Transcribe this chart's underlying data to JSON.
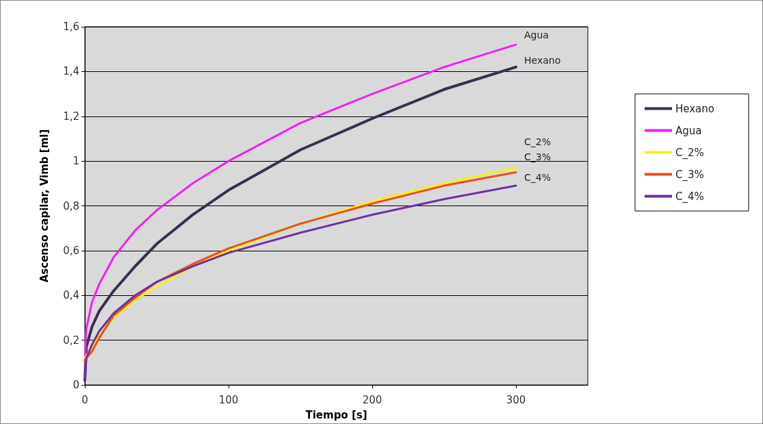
{
  "chart_data": {
    "type": "line",
    "xlabel": "Tiempo [s]",
    "ylabel": "Ascenso capilar, Vimb [ml]",
    "xlim": [
      0,
      350
    ],
    "xticks": [
      0,
      100,
      200,
      300
    ],
    "ylim": [
      0,
      1.6
    ],
    "yticks": [
      0,
      {
        "value": 0.2,
        "label": "0,2"
      },
      {
        "value": 0.4,
        "label": "0,4"
      },
      {
        "value": 0.6,
        "label": "0,6"
      },
      {
        "value": 0.8,
        "label": "0,8"
      },
      1,
      {
        "value": 1.2,
        "label": "1,2"
      },
      {
        "value": 1.4,
        "label": "1,4"
      },
      {
        "value": 1.6,
        "label": "1,6"
      }
    ],
    "grid": "y",
    "legend": "right",
    "marker": "none",
    "line_style": "solid",
    "x": [
      0,
      1,
      5,
      10,
      20,
      35,
      50,
      75,
      100,
      150,
      200,
      250,
      300
    ],
    "series": [
      {
        "name": "Hexano",
        "color": "#3b2d52",
        "values": [
          0.02,
          0.17,
          0.26,
          0.33,
          0.42,
          0.53,
          0.63,
          0.76,
          0.87,
          1.05,
          1.19,
          1.32,
          1.42
        ]
      },
      {
        "name": "Agua",
        "color": "#ee22ee",
        "values": [
          0.1,
          0.25,
          0.37,
          0.45,
          0.57,
          0.69,
          0.78,
          0.9,
          1.0,
          1.17,
          1.3,
          1.42,
          1.52
        ]
      },
      {
        "name": "C_2%",
        "color": "#f5f01a",
        "values": [
          0.12,
          0.13,
          0.17,
          0.22,
          0.3,
          0.38,
          0.44,
          0.53,
          0.6,
          0.72,
          0.82,
          0.9,
          0.97
        ]
      },
      {
        "name": "C_3%",
        "color": "#e8501a",
        "values": [
          0.1,
          0.12,
          0.15,
          0.21,
          0.31,
          0.39,
          0.46,
          0.54,
          0.61,
          0.72,
          0.81,
          0.89,
          0.95
        ]
      },
      {
        "name": "C_4%",
        "color": "#7030a0",
        "values": [
          0.02,
          0.12,
          0.18,
          0.24,
          0.32,
          0.4,
          0.46,
          0.53,
          0.59,
          0.68,
          0.76,
          0.83,
          0.89
        ]
      }
    ]
  }
}
